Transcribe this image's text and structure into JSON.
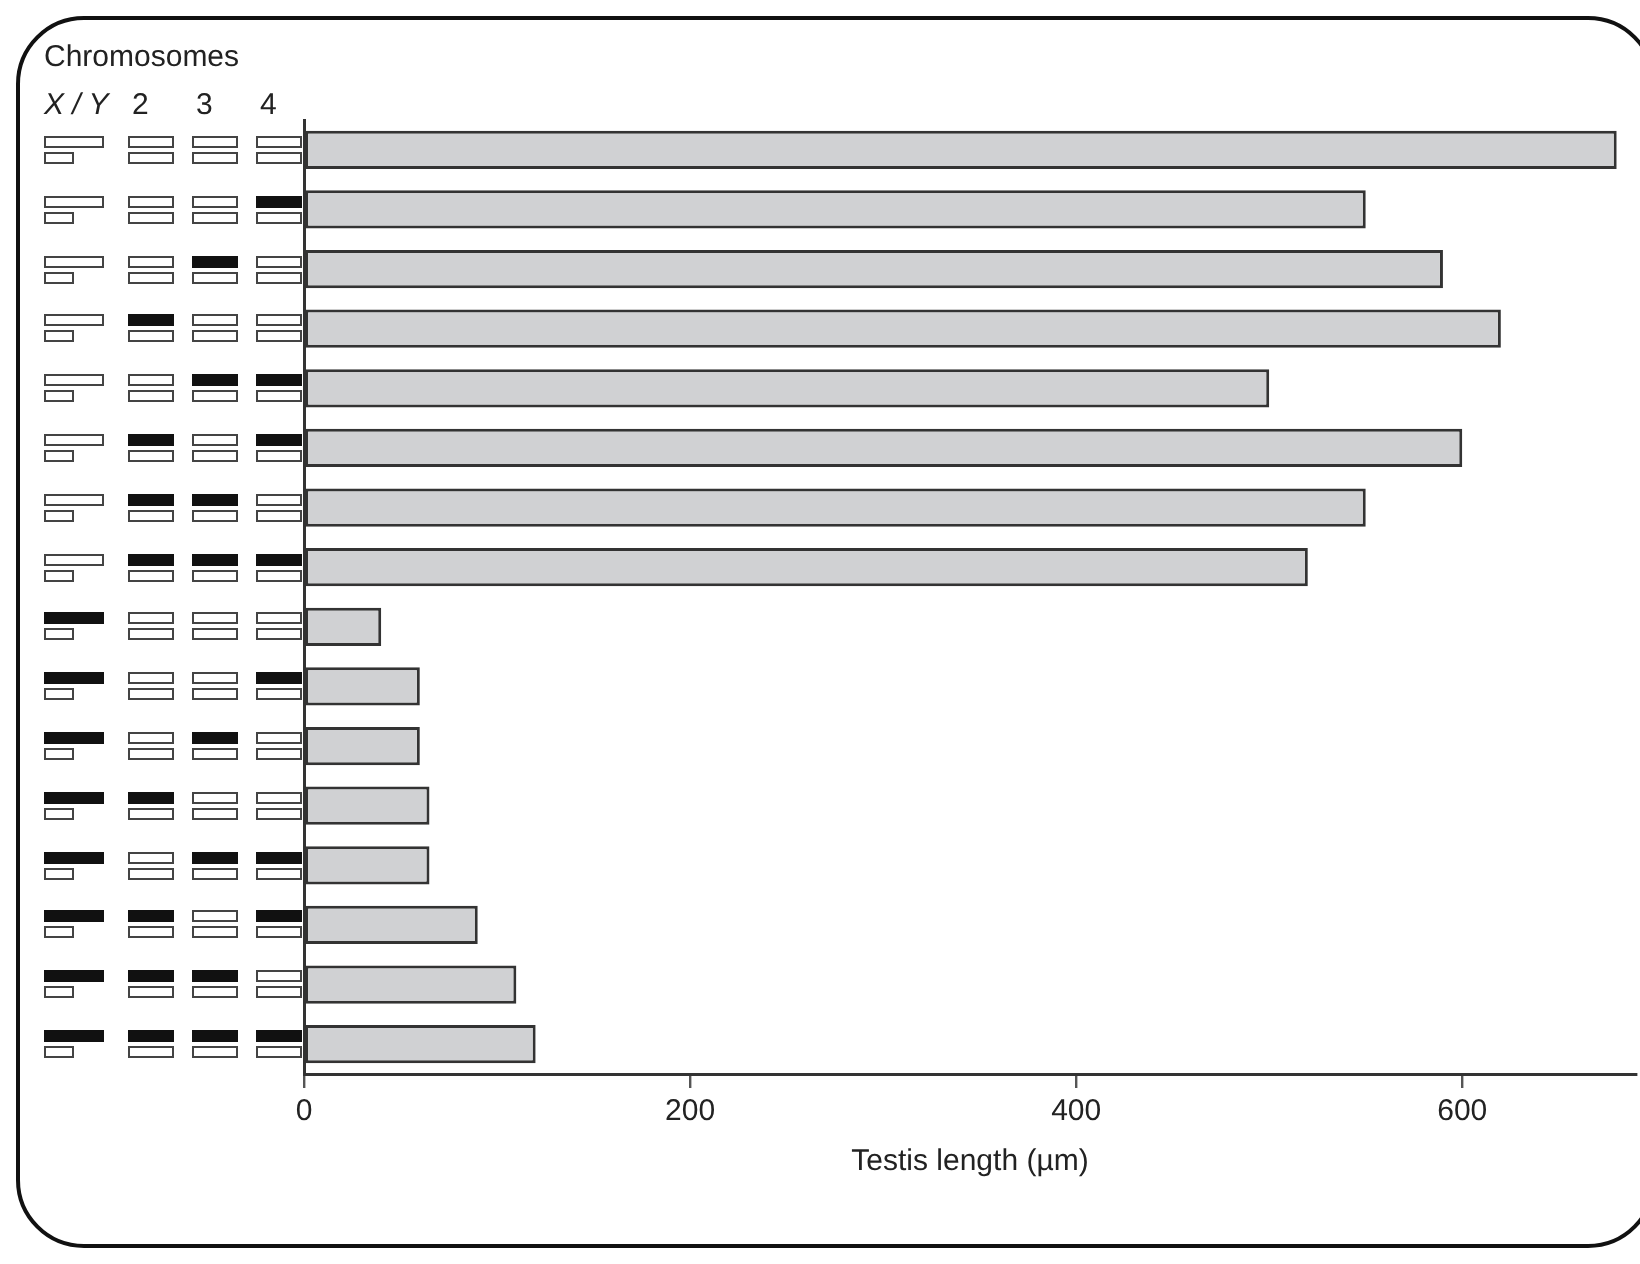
{
  "chart_data": {
    "type": "bar",
    "orientation": "horizontal",
    "categories": [
      null,
      null,
      null,
      null,
      null,
      null,
      null,
      null,
      null,
      null,
      null,
      null,
      null,
      null,
      null,
      null
    ],
    "values": [
      680,
      550,
      590,
      620,
      500,
      600,
      550,
      520,
      40,
      60,
      60,
      65,
      65,
      90,
      110,
      120
    ],
    "color": "#d0d1d3",
    "xlabel": "Testis length (µm)",
    "xlim": [
      0,
      690
    ],
    "xticks": [
      0,
      200,
      400,
      600
    ],
    "annotations": [
      "Chromosomes",
      "X / Y",
      "2",
      "3",
      "4"
    ],
    "grid": false,
    "legend": false,
    "tick_labels": "x"
  }
}
